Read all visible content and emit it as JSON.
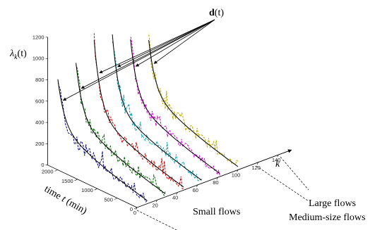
{
  "chart_data": {
    "type": "line",
    "view": "3d-waterfall",
    "z_axis": {
      "label_italic": "λ",
      "label_sub": "k",
      "label_tail": "(t)",
      "ticks": [
        0,
        200,
        400,
        600,
        800,
        1000,
        1200
      ],
      "range": [
        0,
        1200
      ]
    },
    "time_axis": {
      "label": "time",
      "label_var": "t",
      "label_unit": "(min)",
      "ticks": [
        0,
        500,
        1000,
        1500,
        2000
      ],
      "range": [
        0,
        2250
      ]
    },
    "k_axis": {
      "label": "k",
      "ticks": [
        0,
        20,
        40,
        60,
        80,
        100,
        120,
        140
      ],
      "range": [
        0,
        150
      ]
    },
    "annotations": {
      "top": "d(t)",
      "top_bold": "d",
      "top_tail": "(t)",
      "small": "Small flows",
      "medium": "Medium-size flows",
      "large": "Large flows"
    },
    "series": [
      {
        "k": 10,
        "color": "#000080",
        "peak": 780
      },
      {
        "k": 28,
        "color": "#006400",
        "peak": 870
      },
      {
        "k": 46,
        "color": "#cc0000",
        "peak": 1020
      },
      {
        "k": 64,
        "color": "#00a0b0",
        "peak": 1010
      },
      {
        "k": 82,
        "color": "#d000d0",
        "peak": 900
      },
      {
        "k": 100,
        "color": "#b8a800",
        "peak": 830
      }
    ]
  }
}
